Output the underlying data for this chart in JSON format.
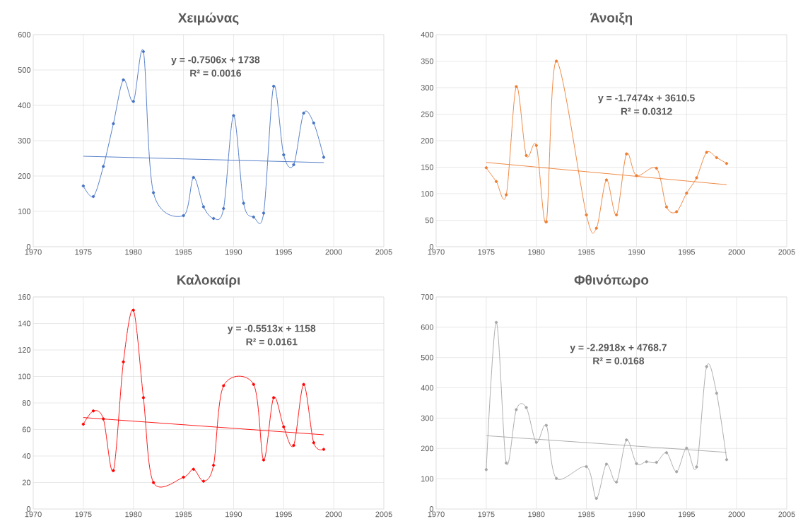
{
  "chart_data": [
    {
      "type": "line",
      "title": "Χειμώνας",
      "xlim": [
        1970,
        2005
      ],
      "xticks": [
        1970,
        1975,
        1980,
        1985,
        1990,
        1995,
        2000,
        2005
      ],
      "ylim": [
        0,
        600
      ],
      "yticks": [
        0,
        100,
        200,
        300,
        400,
        500,
        600
      ],
      "grid": true,
      "marker": "circle",
      "annotations": [
        "y = -0.7506x + 1738",
        "R² = 0.0016"
      ],
      "series": [
        {
          "color": "#4472c4",
          "x": [
            1975,
            1976,
            1977,
            1978,
            1979,
            1980,
            1981,
            1982,
            1985,
            1986,
            1987,
            1988,
            1989,
            1990,
            1991,
            1992,
            1993,
            1994,
            1995,
            1996,
            1997,
            1998,
            1999
          ],
          "values": [
            172,
            142,
            227,
            348,
            472,
            411,
            552,
            153,
            88,
            196,
            113,
            80,
            108,
            371,
            123,
            84,
            95,
            454,
            260,
            232,
            378,
            350,
            253
          ]
        },
        {
          "color": "#4472c4",
          "marker": "none",
          "x": [
            1975,
            1999
          ],
          "values": [
            256,
            238
          ]
        }
      ]
    },
    {
      "type": "line",
      "title": "Άνοιξη",
      "xlim": [
        1970,
        2005
      ],
      "xticks": [
        1970,
        1975,
        1980,
        1985,
        1990,
        1995,
        2000,
        2005
      ],
      "ylim": [
        0,
        400
      ],
      "yticks": [
        0,
        50,
        100,
        150,
        200,
        250,
        300,
        350,
        400
      ],
      "grid": true,
      "marker": "circle",
      "annotations": [
        "y = -1.7474x + 3610.5",
        "R² = 0.0312"
      ],
      "series": [
        {
          "color": "#ed7d31",
          "x": [
            1975,
            1976,
            1977,
            1978,
            1979,
            1980,
            1981,
            1982,
            1985,
            1986,
            1987,
            1988,
            1989,
            1990,
            1992,
            1993,
            1994,
            1995,
            1996,
            1997,
            1998,
            1999
          ],
          "values": [
            149,
            123,
            98,
            302,
            172,
            191,
            47,
            350,
            60,
            35,
            126,
            60,
            175,
            134,
            148,
            75,
            66,
            101,
            130,
            178,
            168,
            157
          ]
        },
        {
          "color": "#ed7d31",
          "marker": "none",
          "x": [
            1975,
            1999
          ],
          "values": [
            159,
            117
          ]
        }
      ]
    },
    {
      "type": "line",
      "title": "Καλοκαίρι",
      "xlim": [
        1970,
        2005
      ],
      "xticks": [
        1970,
        1975,
        1980,
        1985,
        1990,
        1995,
        2000,
        2005
      ],
      "ylim": [
        0,
        160
      ],
      "yticks": [
        0,
        20,
        40,
        60,
        80,
        100,
        120,
        140,
        160
      ],
      "grid": true,
      "marker": "circle",
      "annotations": [
        "y = -0.5513x + 1158",
        "R² = 0.0161"
      ],
      "series": [
        {
          "color": "#ff0000",
          "x": [
            1975,
            1976,
            1977,
            1978,
            1979,
            1980,
            1981,
            1982,
            1985,
            1986,
            1987,
            1988,
            1989,
            1992,
            1993,
            1994,
            1995,
            1996,
            1997,
            1998,
            1999
          ],
          "values": [
            64,
            74,
            68,
            29,
            111,
            150,
            84,
            20,
            24,
            30,
            21,
            33,
            93,
            94,
            37,
            84,
            62,
            48,
            94,
            50,
            45
          ]
        },
        {
          "color": "#ff0000",
          "marker": "none",
          "x": [
            1975,
            1999
          ],
          "values": [
            69,
            56
          ]
        }
      ]
    },
    {
      "type": "line",
      "title": "Φθινόπωρο",
      "xlim": [
        1970,
        2005
      ],
      "xticks": [
        1970,
        1975,
        1980,
        1985,
        1990,
        1995,
        2000,
        2005
      ],
      "ylim": [
        0,
        700
      ],
      "yticks": [
        0,
        100,
        200,
        300,
        400,
        500,
        600,
        700
      ],
      "grid": true,
      "marker": "circle",
      "annotations": [
        "y = -2.2918x + 4768.7",
        "R² = 0.0168"
      ],
      "series": [
        {
          "color": "#a5a5a5",
          "x": [
            1975,
            1976,
            1977,
            1978,
            1979,
            1980,
            1981,
            1982,
            1985,
            1986,
            1987,
            1988,
            1989,
            1990,
            1991,
            1992,
            1993,
            1994,
            1995,
            1996,
            1997,
            1998,
            1999
          ],
          "values": [
            130,
            616,
            152,
            328,
            335,
            220,
            276,
            101,
            140,
            35,
            148,
            89,
            228,
            150,
            156,
            154,
            186,
            123,
            201,
            139,
            470,
            382,
            163
          ]
        },
        {
          "color": "#a5a5a5",
          "marker": "none",
          "x": [
            1975,
            1999
          ],
          "values": [
            242,
            187
          ]
        }
      ]
    }
  ]
}
